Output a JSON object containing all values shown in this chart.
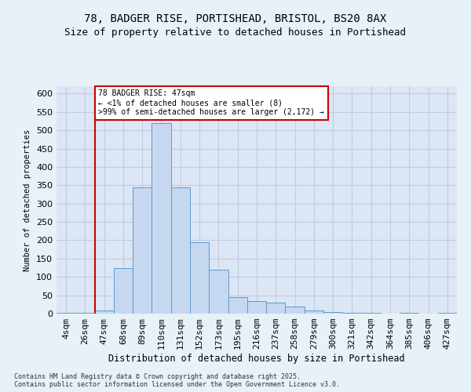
{
  "title_line1": "78, BADGER RISE, PORTISHEAD, BRISTOL, BS20 8AX",
  "title_line2": "Size of property relative to detached houses in Portishead",
  "xlabel": "Distribution of detached houses by size in Portishead",
  "ylabel": "Number of detached properties",
  "footnote": "Contains HM Land Registry data © Crown copyright and database right 2025.\nContains public sector information licensed under the Open Government Licence v3.0.",
  "categories": [
    "4sqm",
    "26sqm",
    "47sqm",
    "68sqm",
    "89sqm",
    "110sqm",
    "131sqm",
    "152sqm",
    "173sqm",
    "195sqm",
    "216sqm",
    "237sqm",
    "258sqm",
    "279sqm",
    "300sqm",
    "321sqm",
    "342sqm",
    "364sqm",
    "385sqm",
    "406sqm",
    "427sqm"
  ],
  "values": [
    2,
    2,
    8,
    125,
    345,
    520,
    345,
    195,
    120,
    45,
    35,
    30,
    20,
    8,
    5,
    2,
    2,
    0,
    2,
    0,
    2
  ],
  "bar_color": "#c5d8f0",
  "bar_edge_color": "#5b9bd5",
  "highlight_index": 2,
  "highlight_line_color": "#cc0000",
  "annotation_text": "78 BADGER RISE: 47sqm\n← <1% of detached houses are smaller (8)\n>99% of semi-detached houses are larger (2,172) →",
  "annotation_box_color": "#ffffff",
  "annotation_box_edge": "#cc0000",
  "ylim": [
    0,
    620
  ],
  "yticks": [
    0,
    50,
    100,
    150,
    200,
    250,
    300,
    350,
    400,
    450,
    500,
    550,
    600
  ],
  "bg_color": "#e8f0f8",
  "plot_bg_color": "#dce6f5",
  "grid_color": "#c0cce0",
  "title_fontsize": 10,
  "subtitle_fontsize": 9
}
